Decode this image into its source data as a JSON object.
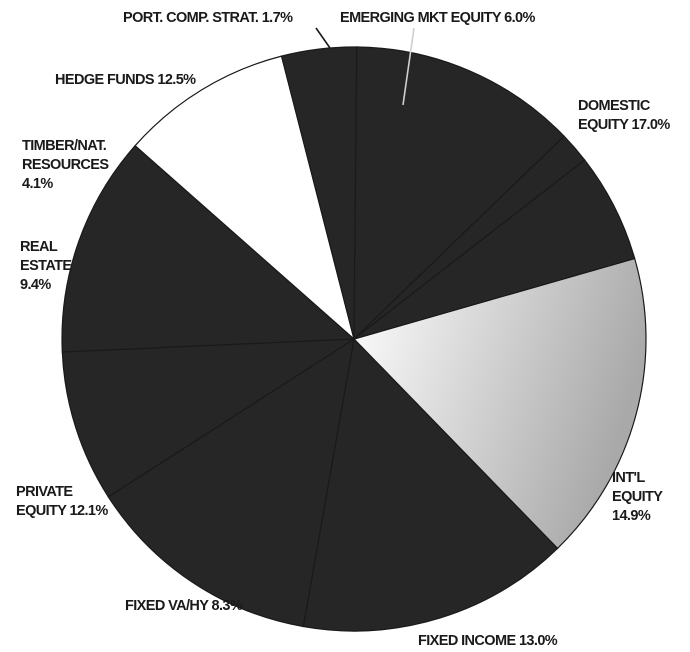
{
  "chart_data": {
    "type": "pie",
    "slices": [
      {
        "label": "DOMESTIC EQUITY",
        "value": 17.0,
        "color": "#c8c8c8",
        "label_lines": [
          "DOMESTIC",
          "EQUITY 17.0%"
        ]
      },
      {
        "label": "INT'L EQUITY",
        "value": 14.9,
        "color": "#262626",
        "label_lines": [
          "INT'L",
          "EQUITY",
          "14.9%"
        ]
      },
      {
        "label": "FIXED INCOME",
        "value": 13.0,
        "color": "#262626",
        "label_lines": [
          "FIXED INCOME 13.0%"
        ]
      },
      {
        "label": "FIXED VA/HY",
        "value": 8.3,
        "color": "#262626",
        "label_lines": [
          "FIXED VA/HY  8.3%"
        ]
      },
      {
        "label": "PRIVATE EQUITY",
        "value": 12.1,
        "color": "#262626",
        "label_lines": [
          "PRIVATE",
          "EQUITY 12.1%"
        ]
      },
      {
        "label": "REAL ESTATE",
        "value": 9.4,
        "color": "#ffffff",
        "label_lines": [
          "REAL",
          "ESTATE",
          "9.4%"
        ]
      },
      {
        "label": "TIMBER/NAT. RESOURCES",
        "value": 4.1,
        "color": "#262626",
        "label_lines": [
          "TIMBER/NAT.",
          "RESOURCES",
          "4.1%"
        ]
      },
      {
        "label": "HEDGE FUNDS",
        "value": 12.5,
        "color": "#262626",
        "label_lines": [
          "HEDGE FUNDS 12.5%"
        ]
      },
      {
        "label": "PORT. COMP. STRAT.",
        "value": 1.7,
        "color": "#262626",
        "label_lines": [
          "PORT. COMP.  STRAT. 1.7%"
        ]
      },
      {
        "label": "EMERGING MKT EQUITY",
        "value": 6.0,
        "color": "#262626",
        "label_lines": [
          "EMERGING MKT EQUITY 6.0%"
        ]
      }
    ],
    "legend": "none",
    "unit": "%"
  }
}
